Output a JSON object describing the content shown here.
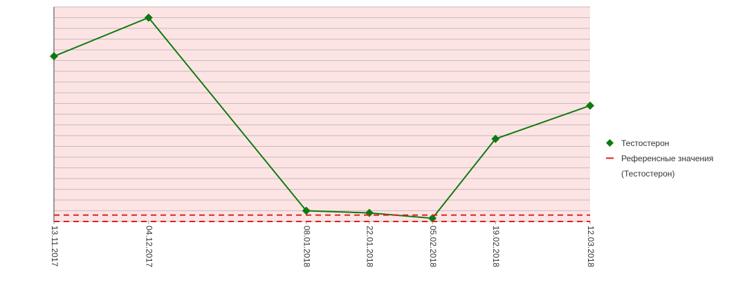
{
  "chart_data": {
    "type": "line",
    "x": [
      "13.11.2017",
      "04.12.2017",
      "08.01.2018",
      "22.01.2018",
      "05.02.2018",
      "19.02.2018",
      "12.03.2018"
    ],
    "xlim": [
      "13.11.2017",
      "12.03.2018"
    ],
    "ylim": [
      0,
      20
    ],
    "ygrid": [
      0,
      1,
      2,
      3,
      4,
      5,
      6,
      7,
      8,
      9,
      10,
      11,
      12,
      13,
      14,
      15,
      16,
      17,
      18,
      19,
      20
    ],
    "background": "#fde4e4",
    "series": [
      {
        "name": "Тестостерон",
        "color": "#0f7a0f",
        "values": [
          15.4,
          19.0,
          1.0,
          0.8,
          0.3,
          7.7,
          10.8
        ]
      },
      {
        "name": "Референсные значения (Тестостерон)",
        "color": "#e02020",
        "dashed": true,
        "levels": [
          0.6,
          0
        ]
      }
    ]
  }
}
